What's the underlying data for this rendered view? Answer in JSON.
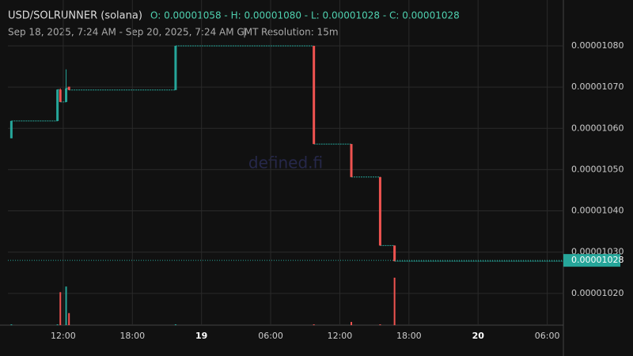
{
  "header": {
    "pair": "USD/SOLRUNNER (solana)",
    "ohlc": "O: 0.00001058 - H: 0.00001080 - L: 0.00001028 - C: 0.00001028",
    "range": "Sep 18, 2025, 7:24 AM - Sep 20, 2025, 7:24 AM GMT",
    "separator": "|",
    "resolution": "Resolution: 15m"
  },
  "chart_data": {
    "type": "candlestick",
    "watermark": "defined.fi",
    "up_color": "#26a69a",
    "down_color": "#ef5350",
    "grid": true,
    "xlim": [
      "2025-09-18T07:12",
      "2025-09-20T07:24"
    ],
    "xticks": [
      {
        "value": "2025-09-18T12:00",
        "label": "12:00"
      },
      {
        "value": "2025-09-18T18:00",
        "label": "18:00"
      },
      {
        "value": "2025-09-19T00:00",
        "label": "19"
      },
      {
        "value": "2025-09-19T06:00",
        "label": "06:00"
      },
      {
        "value": "2025-09-19T12:00",
        "label": "12:00"
      },
      {
        "value": "2025-09-19T18:00",
        "label": "18:00"
      },
      {
        "value": "2025-09-20T00:00",
        "label": "20"
      },
      {
        "value": "2025-09-20T06:00",
        "label": "06:00"
      }
    ],
    "ylim": [
      1.0123e-05,
      1.0892e-05
    ],
    "yticks": [
      {
        "value": 1.02e-05,
        "label": "0.00001020"
      },
      {
        "value": 1.03e-05,
        "label": "0.00001030"
      },
      {
        "value": 1.04e-05,
        "label": "0.00001040"
      },
      {
        "value": 1.05e-05,
        "label": "0.00001050"
      },
      {
        "value": 1.06e-05,
        "label": "0.00001060"
      },
      {
        "value": 1.07e-05,
        "label": "0.00001070"
      },
      {
        "value": 1.08e-05,
        "label": "0.00001080"
      }
    ],
    "last_price": {
      "value": 1.028e-05,
      "label": "0.00001028"
    },
    "candles": [
      {
        "x": "2025-09-18T07:30",
        "open": 1.0576e-05,
        "high": 1.0618e-05,
        "low": 1.0576e-05,
        "close": 1.0618e-05,
        "volume": 1
      },
      {
        "x": "2025-09-18T11:30",
        "open": 1.0618e-05,
        "high": 1.0694e-05,
        "low": 1.0618e-05,
        "close": 1.0694e-05,
        "volume": 1
      },
      {
        "x": "2025-09-18T11:45",
        "open": 1.0694e-05,
        "high": 1.0697e-05,
        "low": 1.0664e-05,
        "close": 1.0664e-05,
        "volume": 41
      },
      {
        "x": "2025-09-18T12:15",
        "open": 1.0664e-05,
        "high": 1.0743e-05,
        "low": 1.0664e-05,
        "close": 1.0697e-05,
        "volume": 48
      },
      {
        "x": "2025-09-18T12:30",
        "open": 1.0701e-05,
        "high": 1.0701e-05,
        "low": 1.0693e-05,
        "close": 1.0693e-05,
        "volume": 15
      },
      {
        "x": "2025-09-18T21:45",
        "open": 1.0693e-05,
        "high": 1.08e-05,
        "low": 1.0693e-05,
        "close": 1.08e-05,
        "volume": 1
      },
      {
        "x": "2025-09-19T09:45",
        "open": 1.08e-05,
        "high": 1.08e-05,
        "low": 1.0562e-05,
        "close": 1.0562e-05,
        "volume": 1
      },
      {
        "x": "2025-09-19T13:00",
        "open": 1.0562e-05,
        "high": 1.0562e-05,
        "low": 1.0482e-05,
        "close": 1.0482e-05,
        "volume": 4
      },
      {
        "x": "2025-09-19T15:30",
        "open": 1.0482e-05,
        "high": 1.0482e-05,
        "low": 1.0316e-05,
        "close": 1.0316e-05,
        "volume": 1
      },
      {
        "x": "2025-09-19T16:45",
        "open": 1.0316e-05,
        "high": 1.0316e-05,
        "low": 1.0278e-05,
        "close": 1.0278e-05,
        "volume": 59
      }
    ]
  }
}
